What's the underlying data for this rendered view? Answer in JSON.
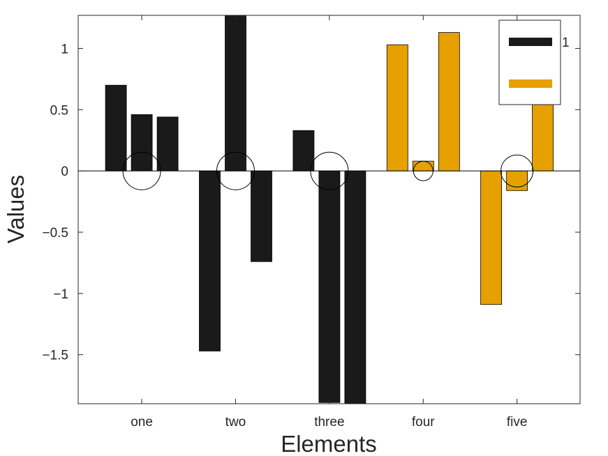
{
  "chart_data": {
    "type": "bar",
    "categories": [
      "one",
      "two",
      "three",
      "four",
      "five"
    ],
    "series": [
      {
        "name": "1",
        "values": [
          0.7,
          -1.47,
          0.33,
          1.03,
          -1.09
        ],
        "color": "#1a1a1a"
      },
      {
        "values": [
          0.46,
          1.3,
          -1.89,
          0.08,
          -0.16
        ],
        "color": "#1a1a1a"
      },
      {
        "values": [
          0.44,
          -0.74,
          -2.0,
          1.13,
          0.86
        ],
        "color": "#1a1a1a"
      }
    ],
    "bar_colors_by_category": [
      "#1a1a1a",
      "#1a1a1a",
      "#1a1a1a",
      "#e6a000",
      "#e6a000"
    ],
    "circle_markers": [
      {
        "category": "one",
        "y": 0.0
      },
      {
        "category": "two",
        "y": 0.0
      },
      {
        "category": "three",
        "y": 0.0
      },
      {
        "category": "four",
        "y": 0.0
      },
      {
        "category": "five",
        "y": 0.0
      }
    ],
    "xlabel": "Elements",
    "ylabel": "Values",
    "ylim": [
      -1.9,
      1.27
    ],
    "yticks": [
      -1.5,
      -1,
      -0.5,
      0,
      0.5,
      1
    ],
    "ytick_labels": [
      "−1.5",
      "−1",
      "−0.5",
      "0",
      "0.5",
      "1"
    ],
    "grid": false,
    "legend": {
      "placement": "top-right",
      "entries": [
        {
          "label": "1",
          "color": "#1a1a1a"
        },
        {
          "label": "",
          "color": "#e6a000"
        }
      ]
    }
  }
}
